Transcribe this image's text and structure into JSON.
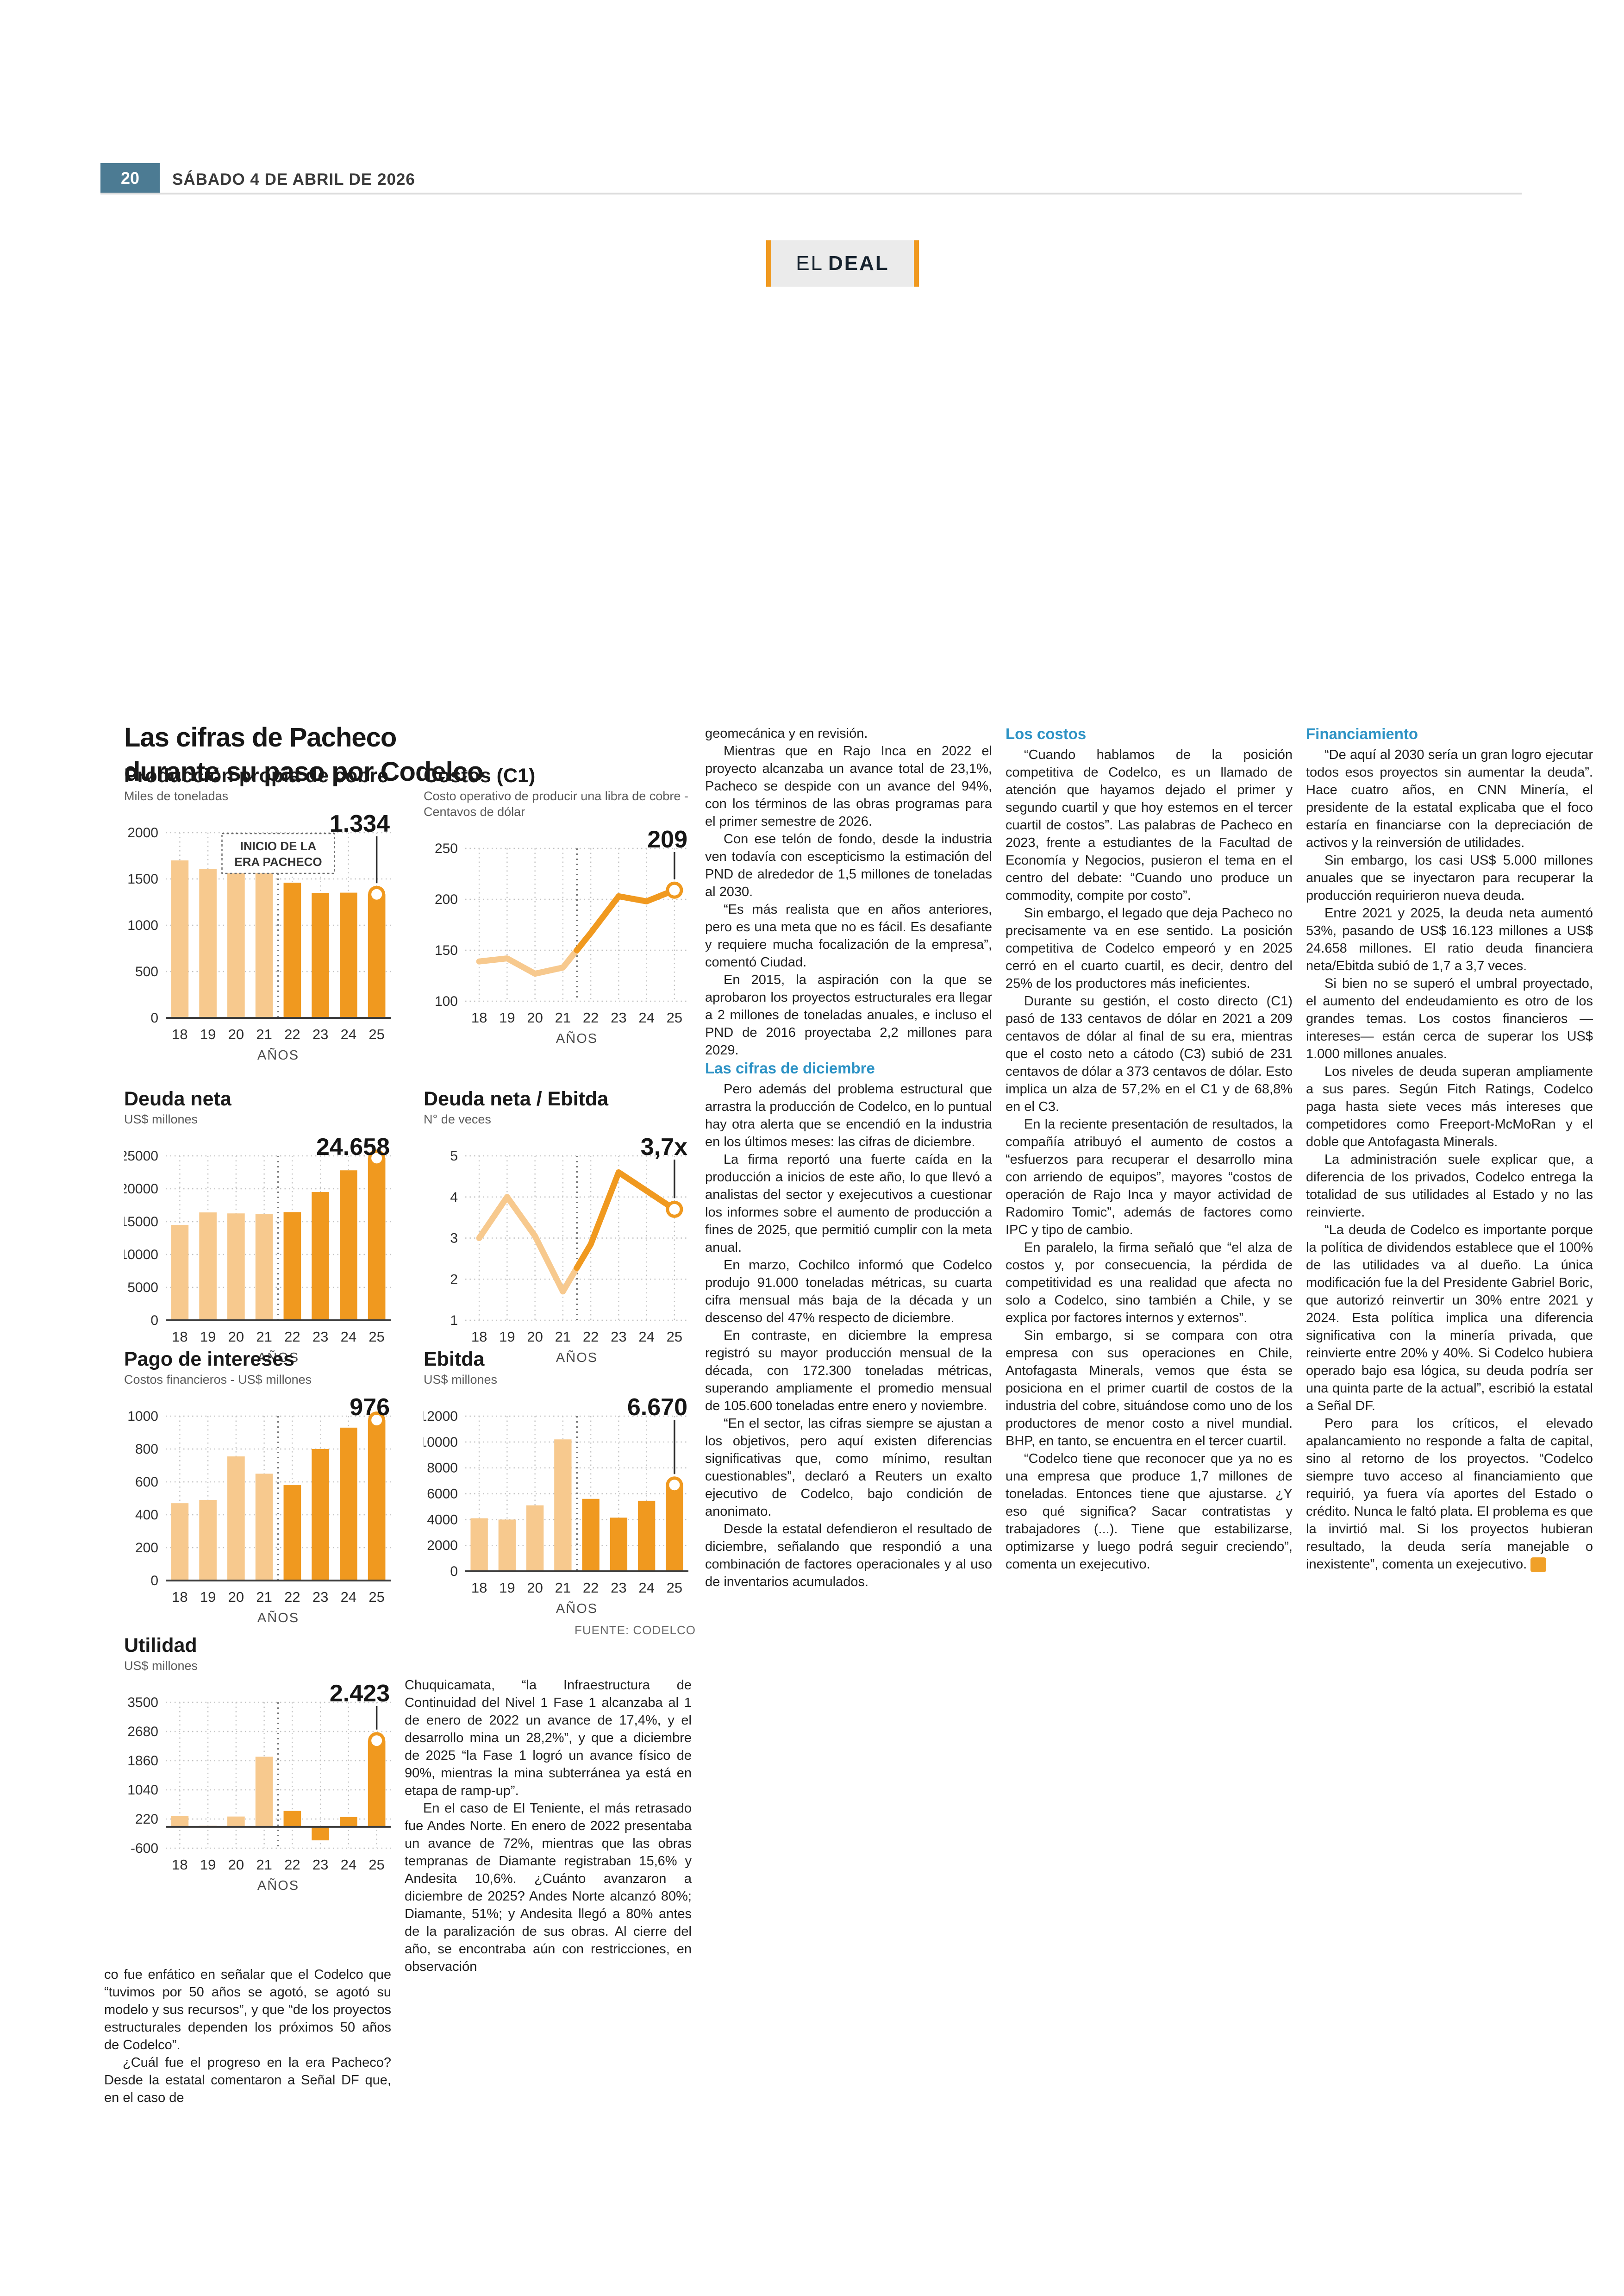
{
  "page": {
    "number": "20",
    "date": "SÁBADO 4 DE ABRIL DE 2026",
    "badge_el": "EL",
    "badge_deal": "DEAL"
  },
  "colors": {
    "light_orange": "#F7C98E",
    "dark_orange": "#F0991F",
    "heading_blue": "#2E93C5",
    "page_badge_blue": "#4C7B93",
    "badge_bg": "#EBEBEB",
    "rule_gray": "#DCDCDC",
    "grid_gray": "#C4C4C4",
    "era_line_gray": "#7A7A7A"
  },
  "infographic": {
    "title_line1": "Las cifras de Pacheco",
    "title_line2": "durante su paso por Codelco",
    "xlabel": "AÑOS",
    "era_annotation_line1": "INICIO DE LA",
    "era_annotation_line2": "ERA PACHECO",
    "source": "FUENTE: CODELCO"
  },
  "chart_data": [
    {
      "type": "bar",
      "title": "Producción propia de cobre",
      "subtitle": "Miles de toneladas",
      "categories": [
        "18",
        "19",
        "20",
        "21",
        "22",
        "23",
        "24",
        "25"
      ],
      "values": [
        1700,
        1610,
        1645,
        1635,
        1460,
        1350,
        1352,
        1334
      ],
      "ylim": [
        0,
        2000
      ],
      "yticks": [
        "0",
        "500",
        "1000",
        "1500",
        "2000"
      ],
      "ytick_values": [
        0,
        500,
        1000,
        1500,
        2000
      ],
      "xlabel": "AÑOS",
      "callout": "1.334",
      "era_split_index": 4,
      "annotation": true
    },
    {
      "type": "line",
      "title": "Costos (C1)",
      "subtitle": "Costo operativo de producir una libra de cobre - Centavos de dólar",
      "categories": [
        "18",
        "19",
        "20",
        "21",
        "22",
        "23",
        "24",
        "25"
      ],
      "values": [
        139,
        142,
        127,
        133,
        167,
        203,
        198,
        209
      ],
      "ylim": [
        100,
        250
      ],
      "yticks": [
        "100",
        "150",
        "200",
        "250"
      ],
      "ytick_values": [
        100,
        150,
        200,
        250
      ],
      "xlabel": "AÑOS",
      "callout": "209",
      "era_split_index": 4,
      "annotation": false
    },
    {
      "type": "bar",
      "title": "Deuda neta",
      "subtitle": "US$ millones",
      "categories": [
        "18",
        "19",
        "20",
        "21",
        "22",
        "23",
        "24",
        "25"
      ],
      "values": [
        14500,
        16400,
        16250,
        16123,
        16450,
        19500,
        22800,
        24658
      ],
      "ylim": [
        0,
        25000
      ],
      "yticks": [
        "0",
        "5000",
        "10000",
        "15000",
        "20000",
        "25000"
      ],
      "ytick_values": [
        0,
        5000,
        10000,
        15000,
        20000,
        25000
      ],
      "xlabel": "AÑOS",
      "callout": "24.658",
      "era_split_index": 4,
      "annotation": false
    },
    {
      "type": "line",
      "title": "Deuda neta / Ebitda",
      "subtitle": "N° de veces",
      "categories": [
        "18",
        "19",
        "20",
        "21",
        "22",
        "23",
        "24",
        "25"
      ],
      "values": [
        3.0,
        4.0,
        3.05,
        1.7,
        2.85,
        4.6,
        4.15,
        3.7
      ],
      "ylim": [
        1,
        5
      ],
      "yticks": [
        "1",
        "2",
        "3",
        "4",
        "5"
      ],
      "ytick_values": [
        1,
        2,
        3,
        4,
        5
      ],
      "xlabel": "AÑOS",
      "callout": "3,7x",
      "era_split_index": 4,
      "annotation": false
    },
    {
      "type": "bar",
      "title": "Pago de intereses",
      "subtitle": "Costos financieros - US$ millones",
      "categories": [
        "18",
        "19",
        "20",
        "21",
        "22",
        "23",
        "24",
        "25"
      ],
      "values": [
        470,
        490,
        755,
        650,
        580,
        800,
        930,
        976
      ],
      "ylim": [
        0,
        1000
      ],
      "yticks": [
        "0",
        "200",
        "400",
        "600",
        "800",
        "1000"
      ],
      "ytick_values": [
        0,
        200,
        400,
        600,
        800,
        1000
      ],
      "xlabel": "AÑOS",
      "callout": "976",
      "era_split_index": 4,
      "annotation": false
    },
    {
      "type": "bar",
      "title": "Ebitda",
      "subtitle": "US$ millones",
      "categories": [
        "18",
        "19",
        "20",
        "21",
        "22",
        "23",
        "24",
        "25"
      ],
      "values": [
        4100,
        4000,
        5100,
        10200,
        5600,
        4150,
        5450,
        6670
      ],
      "ylim": [
        0,
        12000
      ],
      "yticks": [
        "0",
        "2000",
        "4000",
        "6000",
        "8000",
        "10000",
        "12000"
      ],
      "ytick_values": [
        0,
        2000,
        4000,
        6000,
        8000,
        10000,
        12000
      ],
      "xlabel": "AÑOS",
      "callout": "6.670",
      "era_split_index": 4,
      "annotation": false
    },
    {
      "type": "bar",
      "title": "Utilidad",
      "subtitle": "US$ millones",
      "categories": [
        "18",
        "19",
        "20",
        "21",
        "22",
        "23",
        "24",
        "25"
      ],
      "values": [
        300,
        30,
        290,
        1970,
        450,
        -380,
        280,
        2423
      ],
      "ylim": [
        -600,
        3500
      ],
      "yticks": [
        "-600",
        "220",
        "1040",
        "1860",
        "2680",
        "3500"
      ],
      "ytick_values": [
        -600,
        220,
        1040,
        1860,
        2680,
        3500
      ],
      "xlabel": "AÑOS",
      "callout": "2.423",
      "era_split_index": 4,
      "annotation": false
    }
  ],
  "articles": {
    "col1": {
      "paras": [
        "co fue enfático en señalar que el Codelco que “tuvimos por 50 años se agotó, se agotó su modelo y sus recursos”, y que “de los proyectos estructurales dependen los próximos 50 años de Codelco”.",
        "¿Cuál fue el progreso en la era Pacheco? Desde la estatal comentaron a Señal DF que, en el caso de"
      ]
    },
    "col2": {
      "paras": [
        "Chuquicamata, “la Infraestructura de Continuidad del Nivel 1 Fase 1 alcanzaba al 1 de enero de 2022 un avance de 17,4%, y el desarrollo mina un 28,2%”, y que a diciembre de 2025 “la Fase 1 logró un avance físico de 90%, mientras la mina subterránea ya está en etapa de ramp-up”.",
        "En el caso de El Teniente, el más retrasado fue Andes Norte. En enero de 2022 presentaba un avance de 72%, mientras que las obras tempranas de Diamante registraban 15,6% y Andesita 10,6%. ¿Cuánto avanzaron a diciembre de 2025? Andes Norte alcanzó 80%; Diamante, 51%; y Andesita llegó a 80% antes de la paralización de sus obras. Al cierre del año, se encontraba aún con restricciones, en observación"
      ]
    },
    "col3": {
      "paras_before": [
        "geomecánica y en revisión.",
        "Mientras que en Rajo Inca en 2022 el proyecto alcanzaba un avance total de 23,1%, Pacheco se despide con un avance del 94%, con los términos de las obras programas para el primer semestre de 2026.",
        "Con ese telón de fondo, desde la industria ven todavía con escepticismo la estimación del PND de alrededor de 1,5 millones de toneladas al 2030.",
        "“Es más realista que en años anteriores, pero es una meta que no es fácil. Es desafiante y requiere mucha focalización de la empresa”, comentó Ciudad.",
        "En 2015, la aspiración con la que se aprobaron los proyectos estructurales era llegar a 2 millones de toneladas anuales, e incluso el PND de 2016 proyectaba 2,2 millones para 2029."
      ],
      "heading": "Las cifras de diciembre",
      "paras_after": [
        "Pero además del problema estructural que arrastra la producción de Codelco, en lo puntual hay otra alerta que se encendió en la industria en los últimos meses: las cifras de diciembre.",
        "La firma reportó una fuerte caída en la producción a inicios de este año, lo que llevó a analistas del sector y exejecutivos a cuestionar los informes sobre el aumento de producción a fines de 2025, que permitió cumplir con la meta anual.",
        "En marzo, Cochilco informó que Codelco produjo 91.000 toneladas métricas, su cuarta cifra mensual más baja de la década y un descenso del 47% respecto de diciembre.",
        "En contraste, en diciembre la empresa registró su mayor producción mensual de la década, con 172.300 toneladas métricas, superando ampliamente el promedio mensual de 105.600 toneladas entre enero y noviembre.",
        "“En el sector, las cifras siempre se ajustan a los objetivos, pero aquí existen diferencias significativas que, como mínimo, resultan cuestionables”, declaró a Reuters un exalto ejecutivo de Codelco, bajo condición de anonimato.",
        "Desde la estatal defendieron el resultado de diciembre, señalando que respondió a una combinación de factores operacionales y al uso de inventarios acumulados."
      ]
    },
    "col4": {
      "heading": "Los costos",
      "paras": [
        "“Cuando hablamos de la posición competitiva de Codelco, es un llamado de atención que hayamos dejado el primer y segundo cuartil y que hoy estemos en el tercer cuartil de costos”. Las palabras de Pacheco en 2023, frente a estudiantes de la Facultad de Economía y Negocios, pusieron el tema en el centro del debate: “Cuando uno produce un commodity, compite por costo”.",
        "Sin embargo, el legado que deja Pacheco no precisamente va en ese sentido. La posición competitiva de Codelco empeoró y en 2025 cerró en el cuarto cuartil, es decir, dentro del 25% de los productores más ineficientes.",
        "Durante su gestión, el costo directo (C1) pasó de 133 centavos de dólar en 2021 a 209 centavos de dólar al final de su era, mientras que el costo neto a cátodo (C3) subió de 231 centavos de dólar a 373 centavos de dólar. Esto implica un alza de 57,2% en el C1 y de 68,8% en el C3.",
        "En la reciente presentación de resultados, la compañía atribuyó el aumento de costos a “esfuerzos para recuperar el desarrollo mina con arriendo de equipos”, mayores “costos de operación de Rajo Inca y mayor actividad de Radomiro Tomic”, además de factores como IPC y tipo de cambio.",
        "En paralelo, la firma señaló que “el alza de costos y, por consecuencia, la pérdida de competitividad es una realidad que afecta no solo a Codelco, sino también a Chile, y se explica por factores internos y externos”.",
        "Sin embargo, si se compara con otra empresa con sus operaciones en Chile, Antofagasta Minerals, vemos que ésta se posiciona en el primer cuartil de costos de la industria del cobre, situándose como uno de los productores de menor costo a nivel mundial. BHP, en tanto, se encuentra en el tercer cuartil.",
        "“Codelco tiene que reconocer que ya no es una empresa que produce 1,7 millones de toneladas. Entonces tiene que ajustarse. ¿Y eso qué significa? Sacar contratistas y trabajadores (...). Tiene que estabilizarse, optimizarse y luego podrá seguir creciendo”, comenta un exejecutivo."
      ]
    },
    "col5": {
      "heading": "Financiamiento",
      "paras": [
        "“De aquí al 2030 sería un gran logro ejecutar todos esos proyectos sin aumentar la deuda”. Hace cuatro años, en CNN Minería, el presidente de la estatal explicaba que el foco estaría en financiarse con la depreciación de activos y la reinversión de utilidades.",
        "Sin embargo, los casi US$ 5.000 millones anuales que se inyectaron para recuperar la producción requirieron nueva deuda.",
        "Entre 2021 y 2025, la deuda neta aumentó 53%, pasando de US$ 16.123 millones a US$ 24.658 millones. El ratio deuda financiera neta/Ebitda subió de 1,7 a 3,7 veces.",
        "Si bien no se superó el umbral proyectado, el aumento del endeudamiento es otro de los grandes temas. Los costos financieros —intereses— están cerca de superar los US$ 1.000 millones anuales.",
        "Los niveles de deuda superan ampliamente a sus pares. Según Fitch Ratings, Codelco paga hasta siete veces más intereses que competidores como Freeport-McMoRan y el doble que Antofagasta Minerals.",
        "La administración suele explicar que, a diferencia de los privados, Codelco entrega la totalidad de sus utilidades al Estado y no las reinvierte.",
        "“La deuda de Codelco es importante porque la política de dividendos establece que el 100% de las utilidades va al dueño. La única modificación fue la del Presidente Gabriel Boric, que autorizó reinvertir un 30% entre 2021 y 2024. Esta política implica una diferencia significativa con la minería privada, que reinvierte entre 20% y 40%. Si Codelco hubiera operado bajo esa lógica, su deuda podría ser una quinta parte de la actual”, escribió la estatal a Señal DF.",
        "Pero para los críticos, el elevado apalancamiento no responde a falta de capital, sino al retorno de los proyectos. “Codelco siempre tuvo acceso al financiamiento que requirió, ya fuera vía aportes del Estado o crédito. Nunca le faltó plata. El problema es que la invirtió mal. Si los proyectos hubieran resultado, la deuda sería manejable o inexistente”, comenta un exejecutivo."
      ],
      "endmark": "S"
    }
  }
}
